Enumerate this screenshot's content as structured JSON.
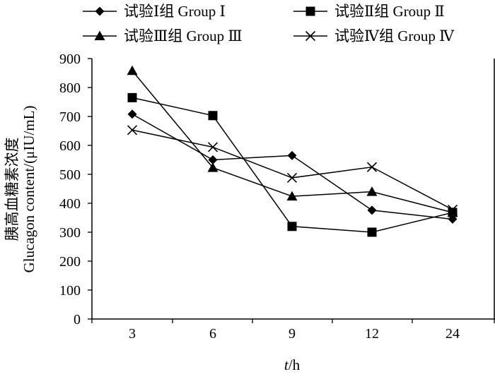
{
  "chart_data": {
    "type": "line",
    "title": "",
    "categories": [
      "3",
      "6",
      "9",
      "12",
      "24"
    ],
    "xlabel": {
      "italic": "t",
      "rest": "/h"
    },
    "ylabel_cn": "胰高血糖素浓度",
    "ylabel_en": "Glucagon content/(μIU/mL)",
    "ylim": [
      0,
      900
    ],
    "yticks": [
      "0",
      "100",
      "200",
      "300",
      "400",
      "500",
      "600",
      "700",
      "800",
      "900"
    ],
    "grid": false,
    "legend_position": "top",
    "series": [
      {
        "name": "试验Ⅰ组  Group Ⅰ",
        "marker": "diamond",
        "values": [
          708,
          550,
          565,
          376,
          345
        ]
      },
      {
        "name": "试验Ⅱ组  Group Ⅱ",
        "marker": "square",
        "values": [
          765,
          703,
          320,
          300,
          368
        ]
      },
      {
        "name": "试验Ⅲ组  Group Ⅲ",
        "marker": "triangle",
        "values": [
          858,
          523,
          424,
          440,
          368
        ]
      },
      {
        "name": "试验Ⅳ组  Group Ⅳ",
        "marker": "cross",
        "values": [
          653,
          594,
          488,
          525,
          378
        ]
      }
    ]
  }
}
